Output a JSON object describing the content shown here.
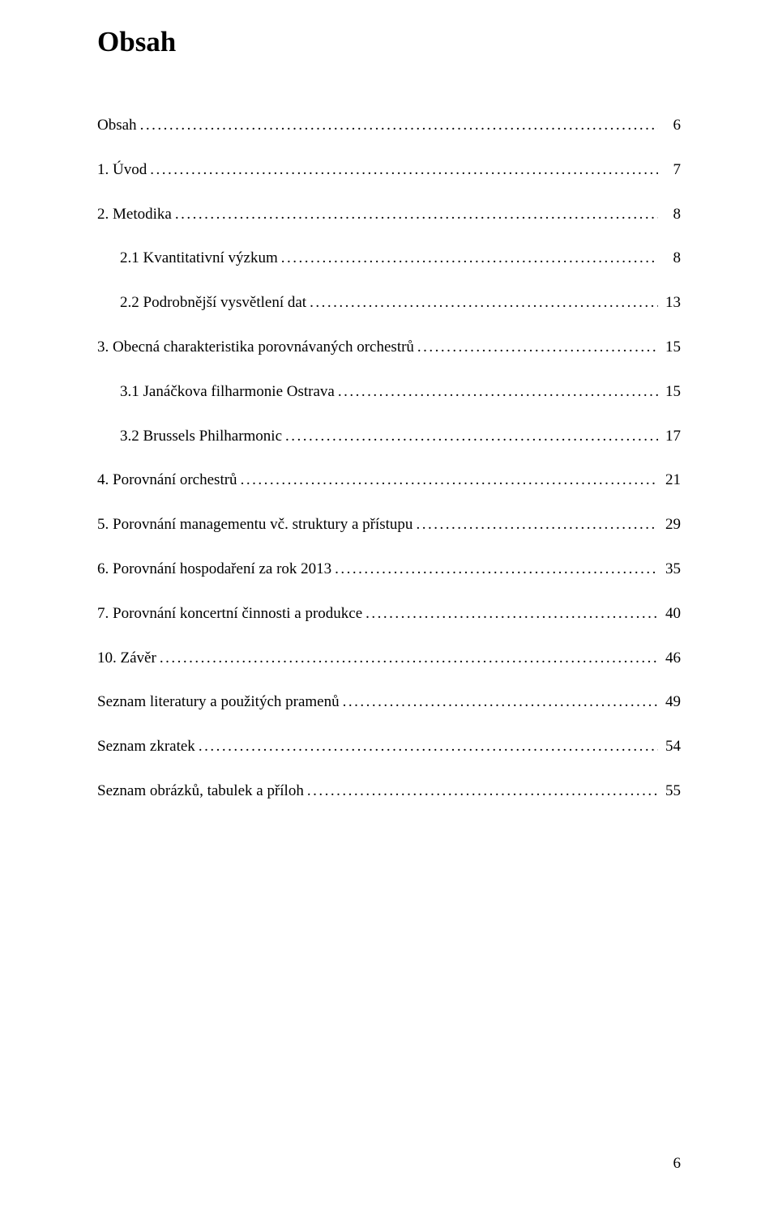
{
  "heading": "Obsah",
  "page_number": "6",
  "toc": [
    {
      "label": "Obsah",
      "page": "6",
      "indent": 0
    },
    {
      "label": "1. Úvod",
      "page": "7",
      "indent": 0
    },
    {
      "label": "2. Metodika",
      "page": "8",
      "indent": 0
    },
    {
      "label": "2.1 Kvantitativní výzkum",
      "page": "8",
      "indent": 1
    },
    {
      "label": "2.2 Podrobnější vysvětlení dat",
      "page": "13",
      "indent": 1
    },
    {
      "label": "3. Obecná charakteristika porovnávaných orchestrů",
      "page": "15",
      "indent": 0
    },
    {
      "label": "3.1 Janáčkova filharmonie Ostrava",
      "page": "15",
      "indent": 1
    },
    {
      "label": "3.2 Brussels Philharmonic",
      "page": "17",
      "indent": 1
    },
    {
      "label": "4. Porovnání orchestrů",
      "page": "21",
      "indent": 0
    },
    {
      "label": "5. Porovnání managementu vč. struktury a přístupu",
      "page": "29",
      "indent": 0
    },
    {
      "label": "6. Porovnání hospodaření za rok 2013",
      "page": "35",
      "indent": 0
    },
    {
      "label": "7. Porovnání koncertní činnosti a produkce",
      "page": "40",
      "indent": 0
    },
    {
      "label": "10. Závěr",
      "page": "46",
      "indent": 0
    },
    {
      "label": "Seznam literatury a použitých pramenů",
      "page": "49",
      "indent": 0
    },
    {
      "label": "Seznam zkratek",
      "page": "54",
      "indent": 0
    },
    {
      "label": "Seznam obrázků, tabulek a příloh",
      "page": "55",
      "indent": 0
    }
  ]
}
